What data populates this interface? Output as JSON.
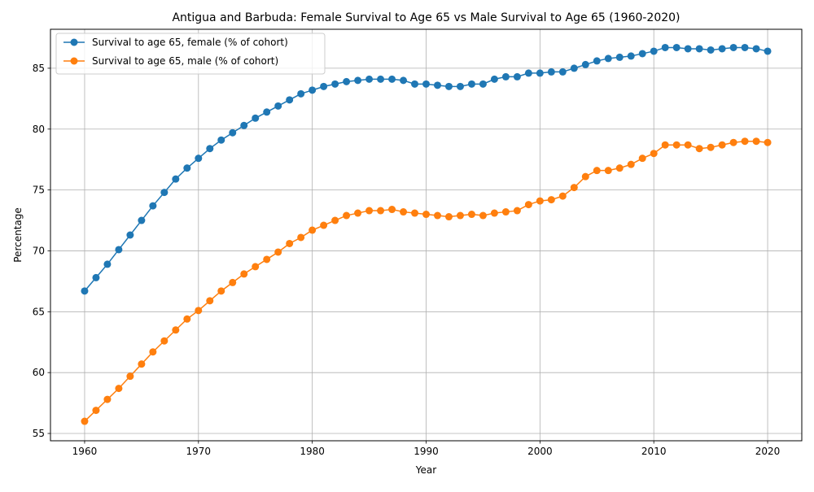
{
  "chart_data": {
    "type": "line",
    "title": "Antigua and Barbuda: Female Survival to Age 65 vs Male Survival to Age 65 (1960-2020)",
    "xlabel": "Year",
    "ylabel": "Percentage",
    "xlim": [
      1957,
      2023
    ],
    "ylim": [
      54.4,
      88.2
    ],
    "xticks": [
      1960,
      1970,
      1980,
      1990,
      2000,
      2010,
      2020
    ],
    "yticks": [
      55,
      60,
      65,
      70,
      75,
      80,
      85
    ],
    "grid": true,
    "legend_position": "upper-left",
    "x": [
      1960,
      1961,
      1962,
      1963,
      1964,
      1965,
      1966,
      1967,
      1968,
      1969,
      1970,
      1971,
      1972,
      1973,
      1974,
      1975,
      1976,
      1977,
      1978,
      1979,
      1980,
      1981,
      1982,
      1983,
      1984,
      1985,
      1986,
      1987,
      1988,
      1989,
      1990,
      1991,
      1992,
      1993,
      1994,
      1995,
      1996,
      1997,
      1998,
      1999,
      2000,
      2001,
      2002,
      2003,
      2004,
      2005,
      2006,
      2007,
      2008,
      2009,
      2010,
      2011,
      2012,
      2013,
      2014,
      2015,
      2016,
      2017,
      2018,
      2019,
      2020
    ],
    "series": [
      {
        "name": "Survival to age 65, female (% of cohort)",
        "color": "#1f77b4",
        "values": [
          66.7,
          67.8,
          68.9,
          70.1,
          71.3,
          72.5,
          73.7,
          74.8,
          75.9,
          76.8,
          77.6,
          78.4,
          79.1,
          79.7,
          80.3,
          80.9,
          81.4,
          81.9,
          82.4,
          82.9,
          83.2,
          83.5,
          83.7,
          83.9,
          84.0,
          84.1,
          84.1,
          84.1,
          84.0,
          83.7,
          83.7,
          83.6,
          83.5,
          83.5,
          83.7,
          83.7,
          84.1,
          84.3,
          84.3,
          84.6,
          84.6,
          84.7,
          84.7,
          85.0,
          85.3,
          85.6,
          85.8,
          85.9,
          86.0,
          86.2,
          86.4,
          86.7,
          86.7,
          86.6,
          86.6,
          86.5,
          86.6,
          86.7,
          86.7,
          86.6,
          86.4
        ]
      },
      {
        "name": "Survival to age 65, male (% of cohort)",
        "color": "#ff7f0e",
        "values": [
          56.0,
          56.9,
          57.8,
          58.7,
          59.7,
          60.7,
          61.7,
          62.6,
          63.5,
          64.4,
          65.1,
          65.9,
          66.7,
          67.4,
          68.1,
          68.7,
          69.3,
          69.9,
          70.6,
          71.1,
          71.7,
          72.1,
          72.5,
          72.9,
          73.1,
          73.3,
          73.3,
          73.4,
          73.2,
          73.1,
          73.0,
          72.9,
          72.8,
          72.9,
          73.0,
          72.9,
          73.1,
          73.2,
          73.3,
          73.8,
          74.1,
          74.2,
          74.5,
          75.2,
          76.1,
          76.6,
          76.6,
          76.8,
          77.1,
          77.6,
          78.0,
          78.7,
          78.7,
          78.7,
          78.4,
          78.5,
          78.7,
          78.9,
          79.0,
          79.0,
          78.9
        ]
      }
    ]
  }
}
